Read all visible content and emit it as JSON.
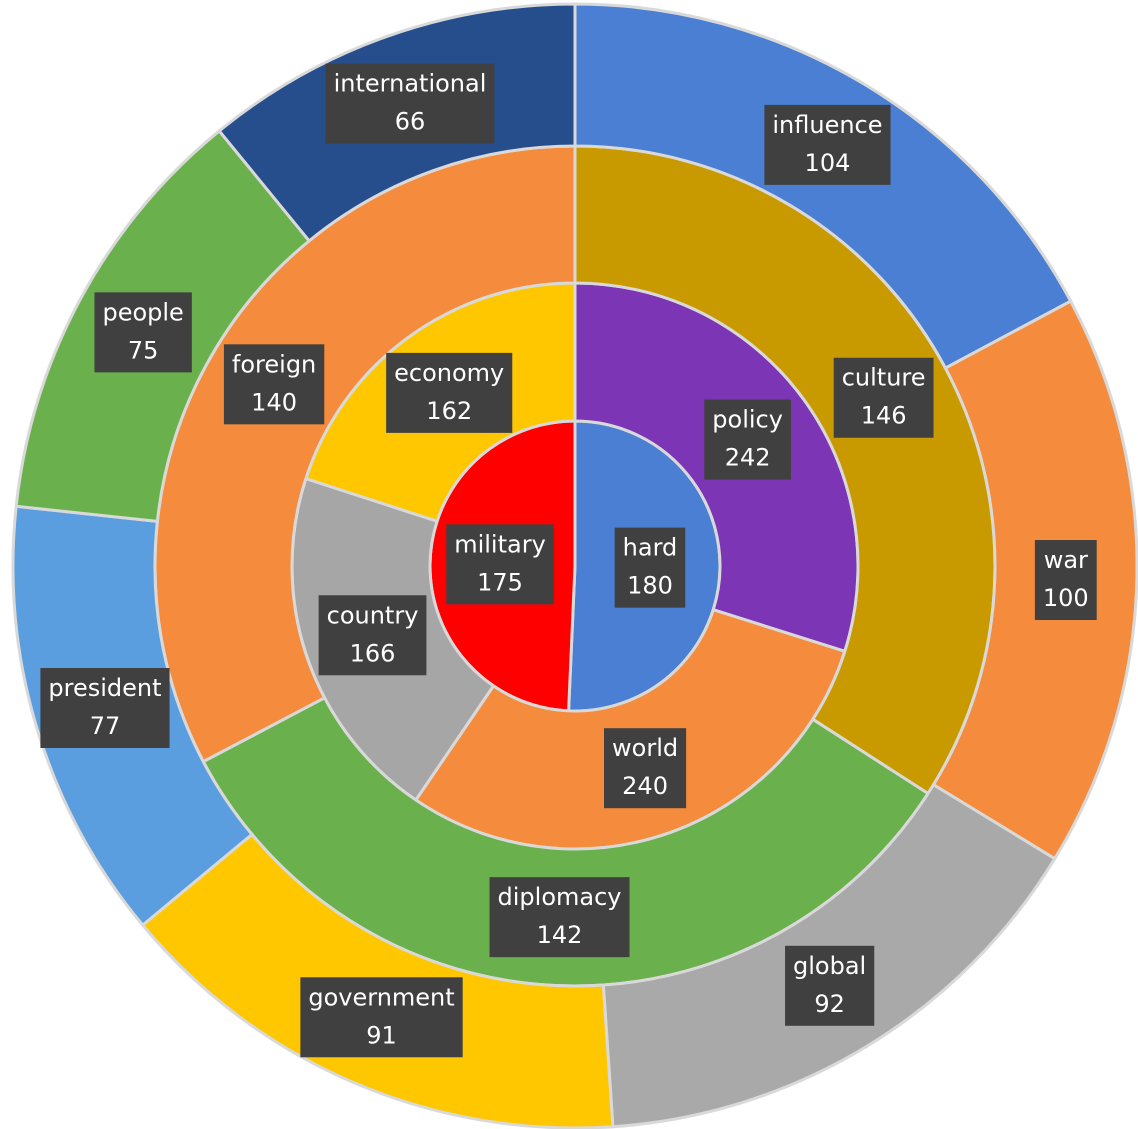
{
  "chart_data": {
    "type": "donut",
    "rings": [
      {
        "categories": [
          "hard",
          "military"
        ],
        "values": [
          180,
          175
        ],
        "colors": [
          "#4a7fd4",
          "#ff0000"
        ]
      },
      {
        "categories": [
          "policy",
          "world",
          "country",
          "economy"
        ],
        "values": [
          242,
          240,
          166,
          162
        ],
        "colors": [
          "#7b35b5",
          "#f58b3c",
          "#a6a6a6",
          "#ffc700"
        ]
      },
      {
        "categories": [
          "culture",
          "diplomacy",
          "foreign"
        ],
        "values": [
          146,
          142,
          140
        ],
        "colors": [
          "#c99a00",
          "#6ab04c",
          "#f58b3c"
        ]
      },
      {
        "categories": [
          "influence",
          "war",
          "global",
          "government",
          "president",
          "people",
          "international"
        ],
        "values": [
          104,
          100,
          92,
          91,
          77,
          75,
          66
        ],
        "colors": [
          "#4a7fd4",
          "#f58b3c",
          "#a9a9a9",
          "#ffc700",
          "#5b9ee0",
          "#6ab04c",
          "#264d8c"
        ]
      }
    ]
  }
}
